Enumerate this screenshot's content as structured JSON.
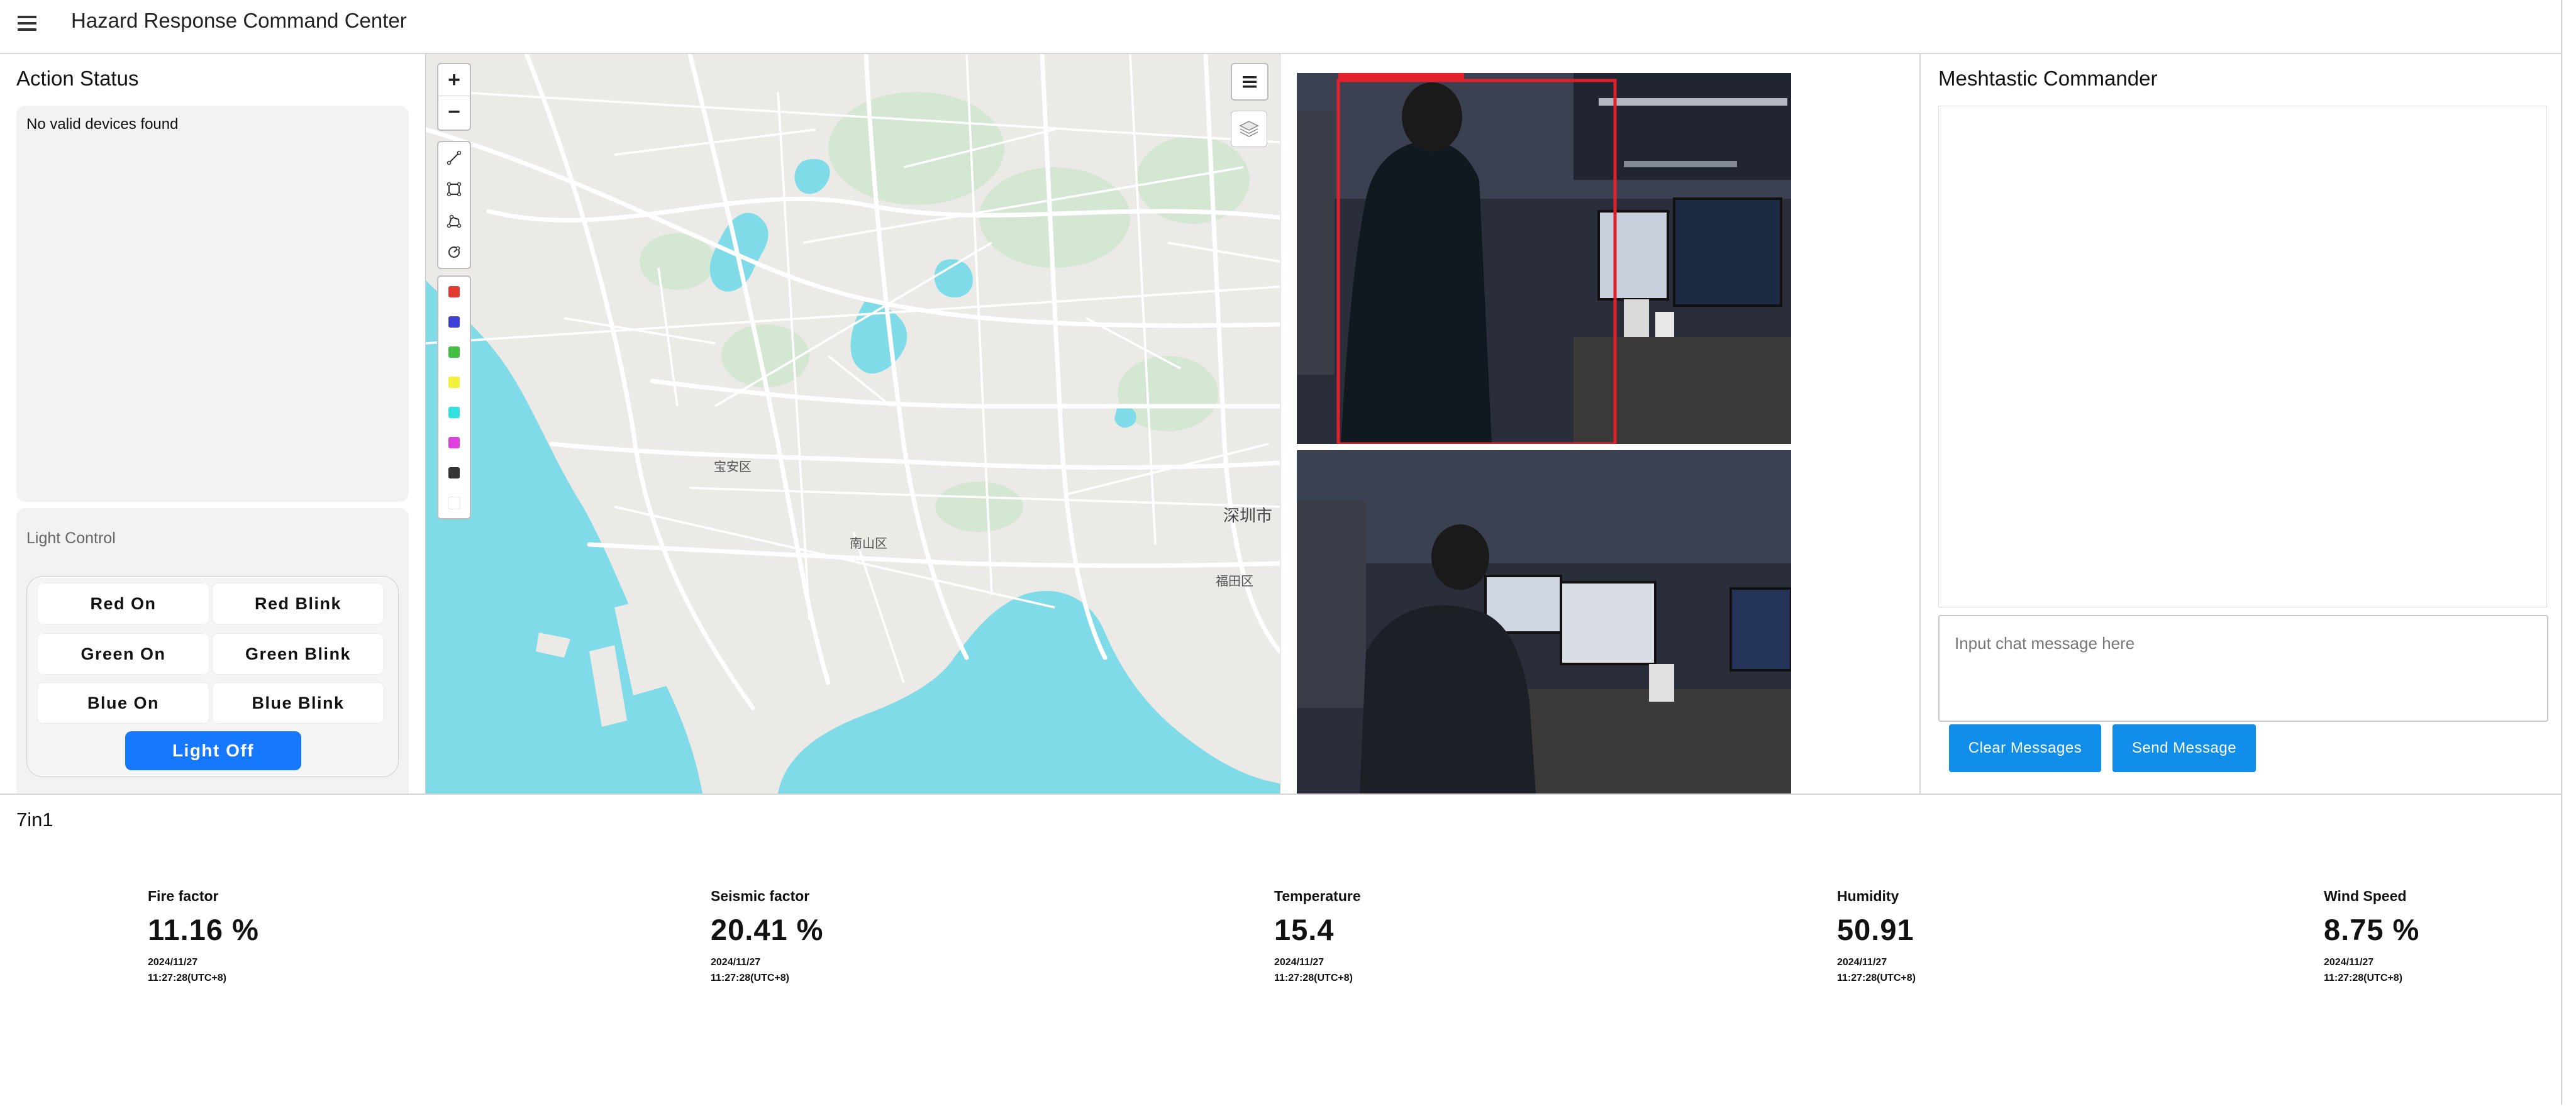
{
  "header": {
    "title": "Hazard Response Command Center",
    "menu_icon": "hamburger-menu-icon"
  },
  "action_status": {
    "title": "Action Status",
    "message": "No valid devices found"
  },
  "light_control": {
    "title": "Light Control",
    "buttons": [
      {
        "label": "Red On"
      },
      {
        "label": "Red Blink"
      },
      {
        "label": "Green On"
      },
      {
        "label": "Green Blink"
      },
      {
        "label": "Blue On"
      },
      {
        "label": "Blue Blink"
      }
    ],
    "off_label": "Light Off",
    "accent": "#1677ff"
  },
  "map": {
    "zoom_in": "+",
    "zoom_out": "−",
    "tools": [
      "polyline-tool-icon",
      "rectangle-tool-icon",
      "polygon-tool-icon",
      "circle-tool-icon"
    ],
    "colors": [
      "#e53935",
      "#3f3fd8",
      "#43c043",
      "#f2f23a",
      "#33e0e0",
      "#e040e0",
      "#333333",
      "#ffffff"
    ],
    "labels": {
      "baoan": "宝安区",
      "nanshan": "南山区",
      "shenzhen": "深圳市",
      "futian": "福田区"
    },
    "water_color": "#7fdbe8"
  },
  "cameras": {
    "detection_color": "#e0202a"
  },
  "meshtastic": {
    "title": "Meshtastic Commander",
    "input_placeholder": "Input chat message here",
    "clear_label": "Clear Messages",
    "send_label": "Send Message",
    "button_color": "#108ee9"
  },
  "sensors": {
    "title": "7in1",
    "metrics": [
      {
        "label": "Fire factor",
        "value": "11.16 %",
        "date": "2024/11/27",
        "time": "11:27:28(UTC+8)"
      },
      {
        "label": "Seismic factor",
        "value": "20.41 %",
        "date": "2024/11/27",
        "time": "11:27:28(UTC+8)"
      },
      {
        "label": "Temperature",
        "value": "15.4",
        "date": "2024/11/27",
        "time": "11:27:28(UTC+8)"
      },
      {
        "label": "Humidity",
        "value": "50.91",
        "date": "2024/11/27",
        "time": "11:27:28(UTC+8)"
      },
      {
        "label": "Wind Speed",
        "value": "8.75 %",
        "date": "2024/11/27",
        "time": "11:27:28(UTC+8)"
      }
    ]
  }
}
